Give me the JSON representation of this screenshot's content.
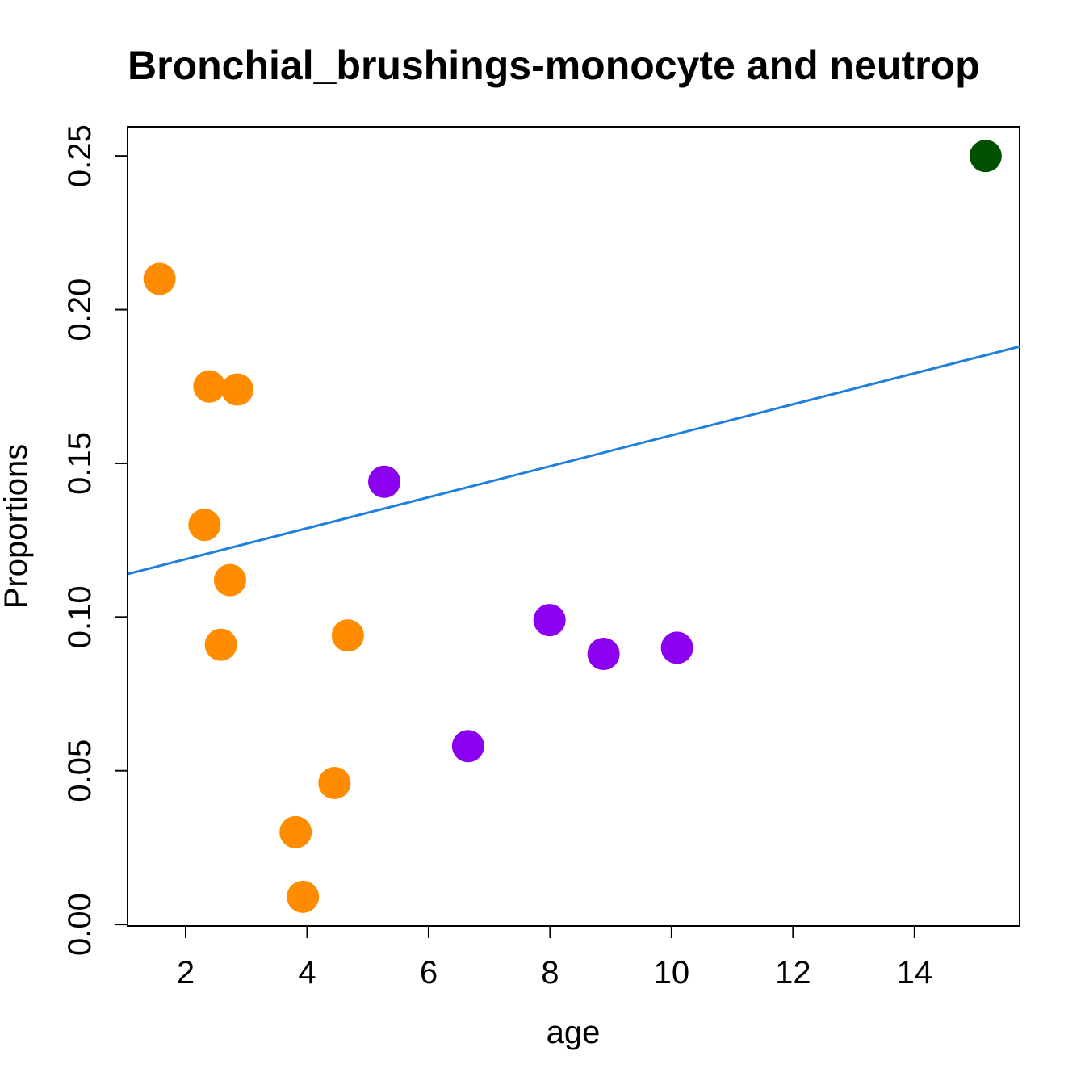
{
  "chart_data": {
    "type": "scatter",
    "title": "Bronchial_brushings-monocyte and neutrop",
    "x_label": "age",
    "y_label": "Proportions",
    "xlim": [
      1.043,
      15.73
    ],
    "ylim": [
      -0.0005,
      0.2595
    ],
    "xticks": [
      2,
      4,
      6,
      8,
      10,
      12,
      14
    ],
    "yticks": [
      {
        "value": 0,
        "label": "0.00"
      },
      0.05,
      {
        "value": 0.1,
        "label": "0.10"
      },
      0.15,
      {
        "value": 0.2,
        "label": "0.20"
      },
      0.25
    ],
    "series": [
      {
        "color": "#ff8c00",
        "x": [
          1.57,
          2.39,
          2.85,
          2.31,
          2.73,
          2.58,
          4.67,
          4.45,
          3.81,
          3.93
        ],
        "values": [
          0.21,
          0.175,
          0.174,
          0.13,
          0.112,
          0.091,
          0.094,
          0.046,
          0.03,
          0.009
        ]
      },
      {
        "color": "#8b00ee",
        "x": [
          5.27,
          6.65,
          7.99,
          8.88,
          10.09
        ],
        "values": [
          0.144,
          0.058,
          0.099,
          0.088,
          0.09
        ]
      },
      {
        "color": "#005000",
        "x": [
          15.17
        ],
        "values": [
          0.25
        ]
      }
    ],
    "fit_line": {
      "color": "#1e7fdc",
      "x": [
        1.043,
        15.73
      ],
      "values": [
        0.114,
        0.188
      ]
    }
  }
}
